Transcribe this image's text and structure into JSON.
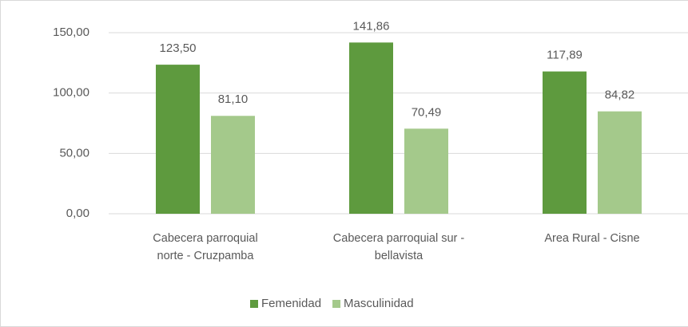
{
  "chart_data": {
    "type": "bar",
    "categories": [
      "Cabecera parroquial norte - Cruzpamba",
      "Cabecera parroquial sur - bellavista",
      "Area Rural - Cisne"
    ],
    "series": [
      {
        "name": "Femenidad",
        "color": "#5e9a3e",
        "values": [
          123.5,
          141.86,
          117.89
        ],
        "value_labels": [
          "123,50",
          "141,86",
          "117,89"
        ]
      },
      {
        "name": "Masculinidad",
        "color": "#a4c98b",
        "values": [
          81.1,
          70.49,
          84.82
        ],
        "value_labels": [
          "81,10",
          "70,49",
          "84,82"
        ]
      }
    ],
    "ylim": [
      0,
      150
    ],
    "yticks": [
      {
        "value": 0,
        "label": "0,00"
      },
      {
        "value": 50,
        "label": "50,00"
      },
      {
        "value": 100,
        "label": "100,00"
      },
      {
        "value": 150,
        "label": "150,00"
      }
    ],
    "grid": true,
    "legend": "bottom"
  }
}
